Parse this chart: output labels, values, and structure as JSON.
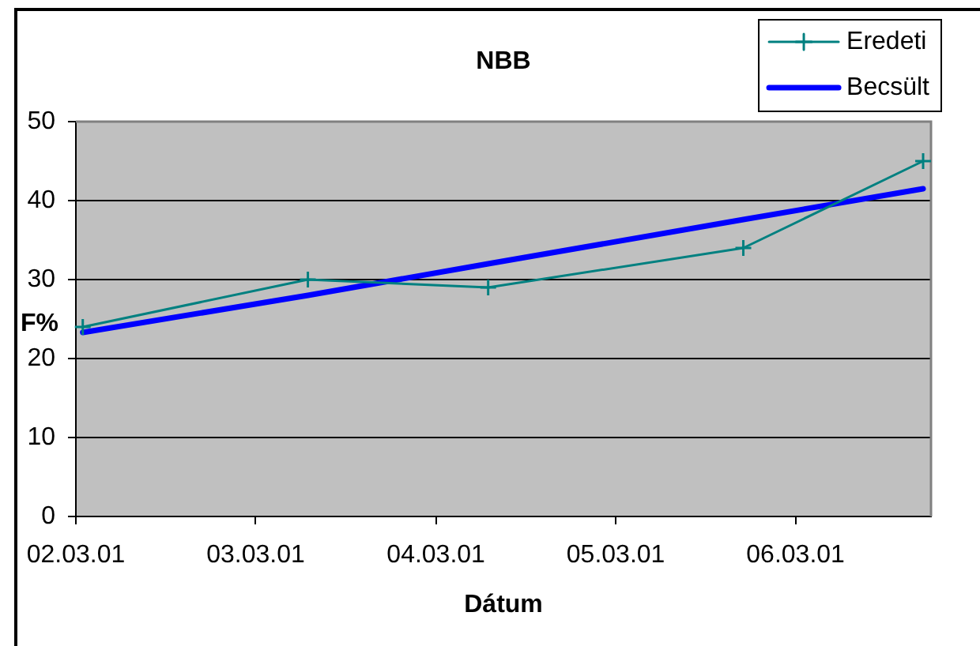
{
  "chart_data": {
    "type": "line",
    "title": "NBB",
    "xlabel": "Dátum",
    "ylabel": "F%",
    "x": [
      "2002-03-15",
      "2003-06-15",
      "2004-06-15",
      "2005-11-15",
      "2006-11-15"
    ],
    "series": [
      {
        "name": "Eredeti",
        "color": "#008080",
        "values": [
          24,
          30,
          29,
          34,
          45
        ],
        "marker": "cross"
      },
      {
        "name": "Becsült",
        "color": "#0000ff",
        "values": [
          23.3,
          28,
          32,
          37.6,
          41.5
        ],
        "marker": "none"
      }
    ],
    "xlim": [
      "2002-03-01",
      "2006-12-01"
    ],
    "xticks": [
      {
        "value": "2002-03-01",
        "label": "02.03.01"
      },
      {
        "value": "2003-03-01",
        "label": "03.03.01"
      },
      {
        "value": "2004-03-01",
        "label": "04.03.01"
      },
      {
        "value": "2005-03-01",
        "label": "05.03.01"
      },
      {
        "value": "2006-03-01",
        "label": "06.03.01"
      }
    ],
    "ylim": [
      0,
      50
    ],
    "yticks": [
      0,
      10,
      20,
      30,
      40,
      50
    ],
    "grid": "y",
    "legend": "top right"
  }
}
